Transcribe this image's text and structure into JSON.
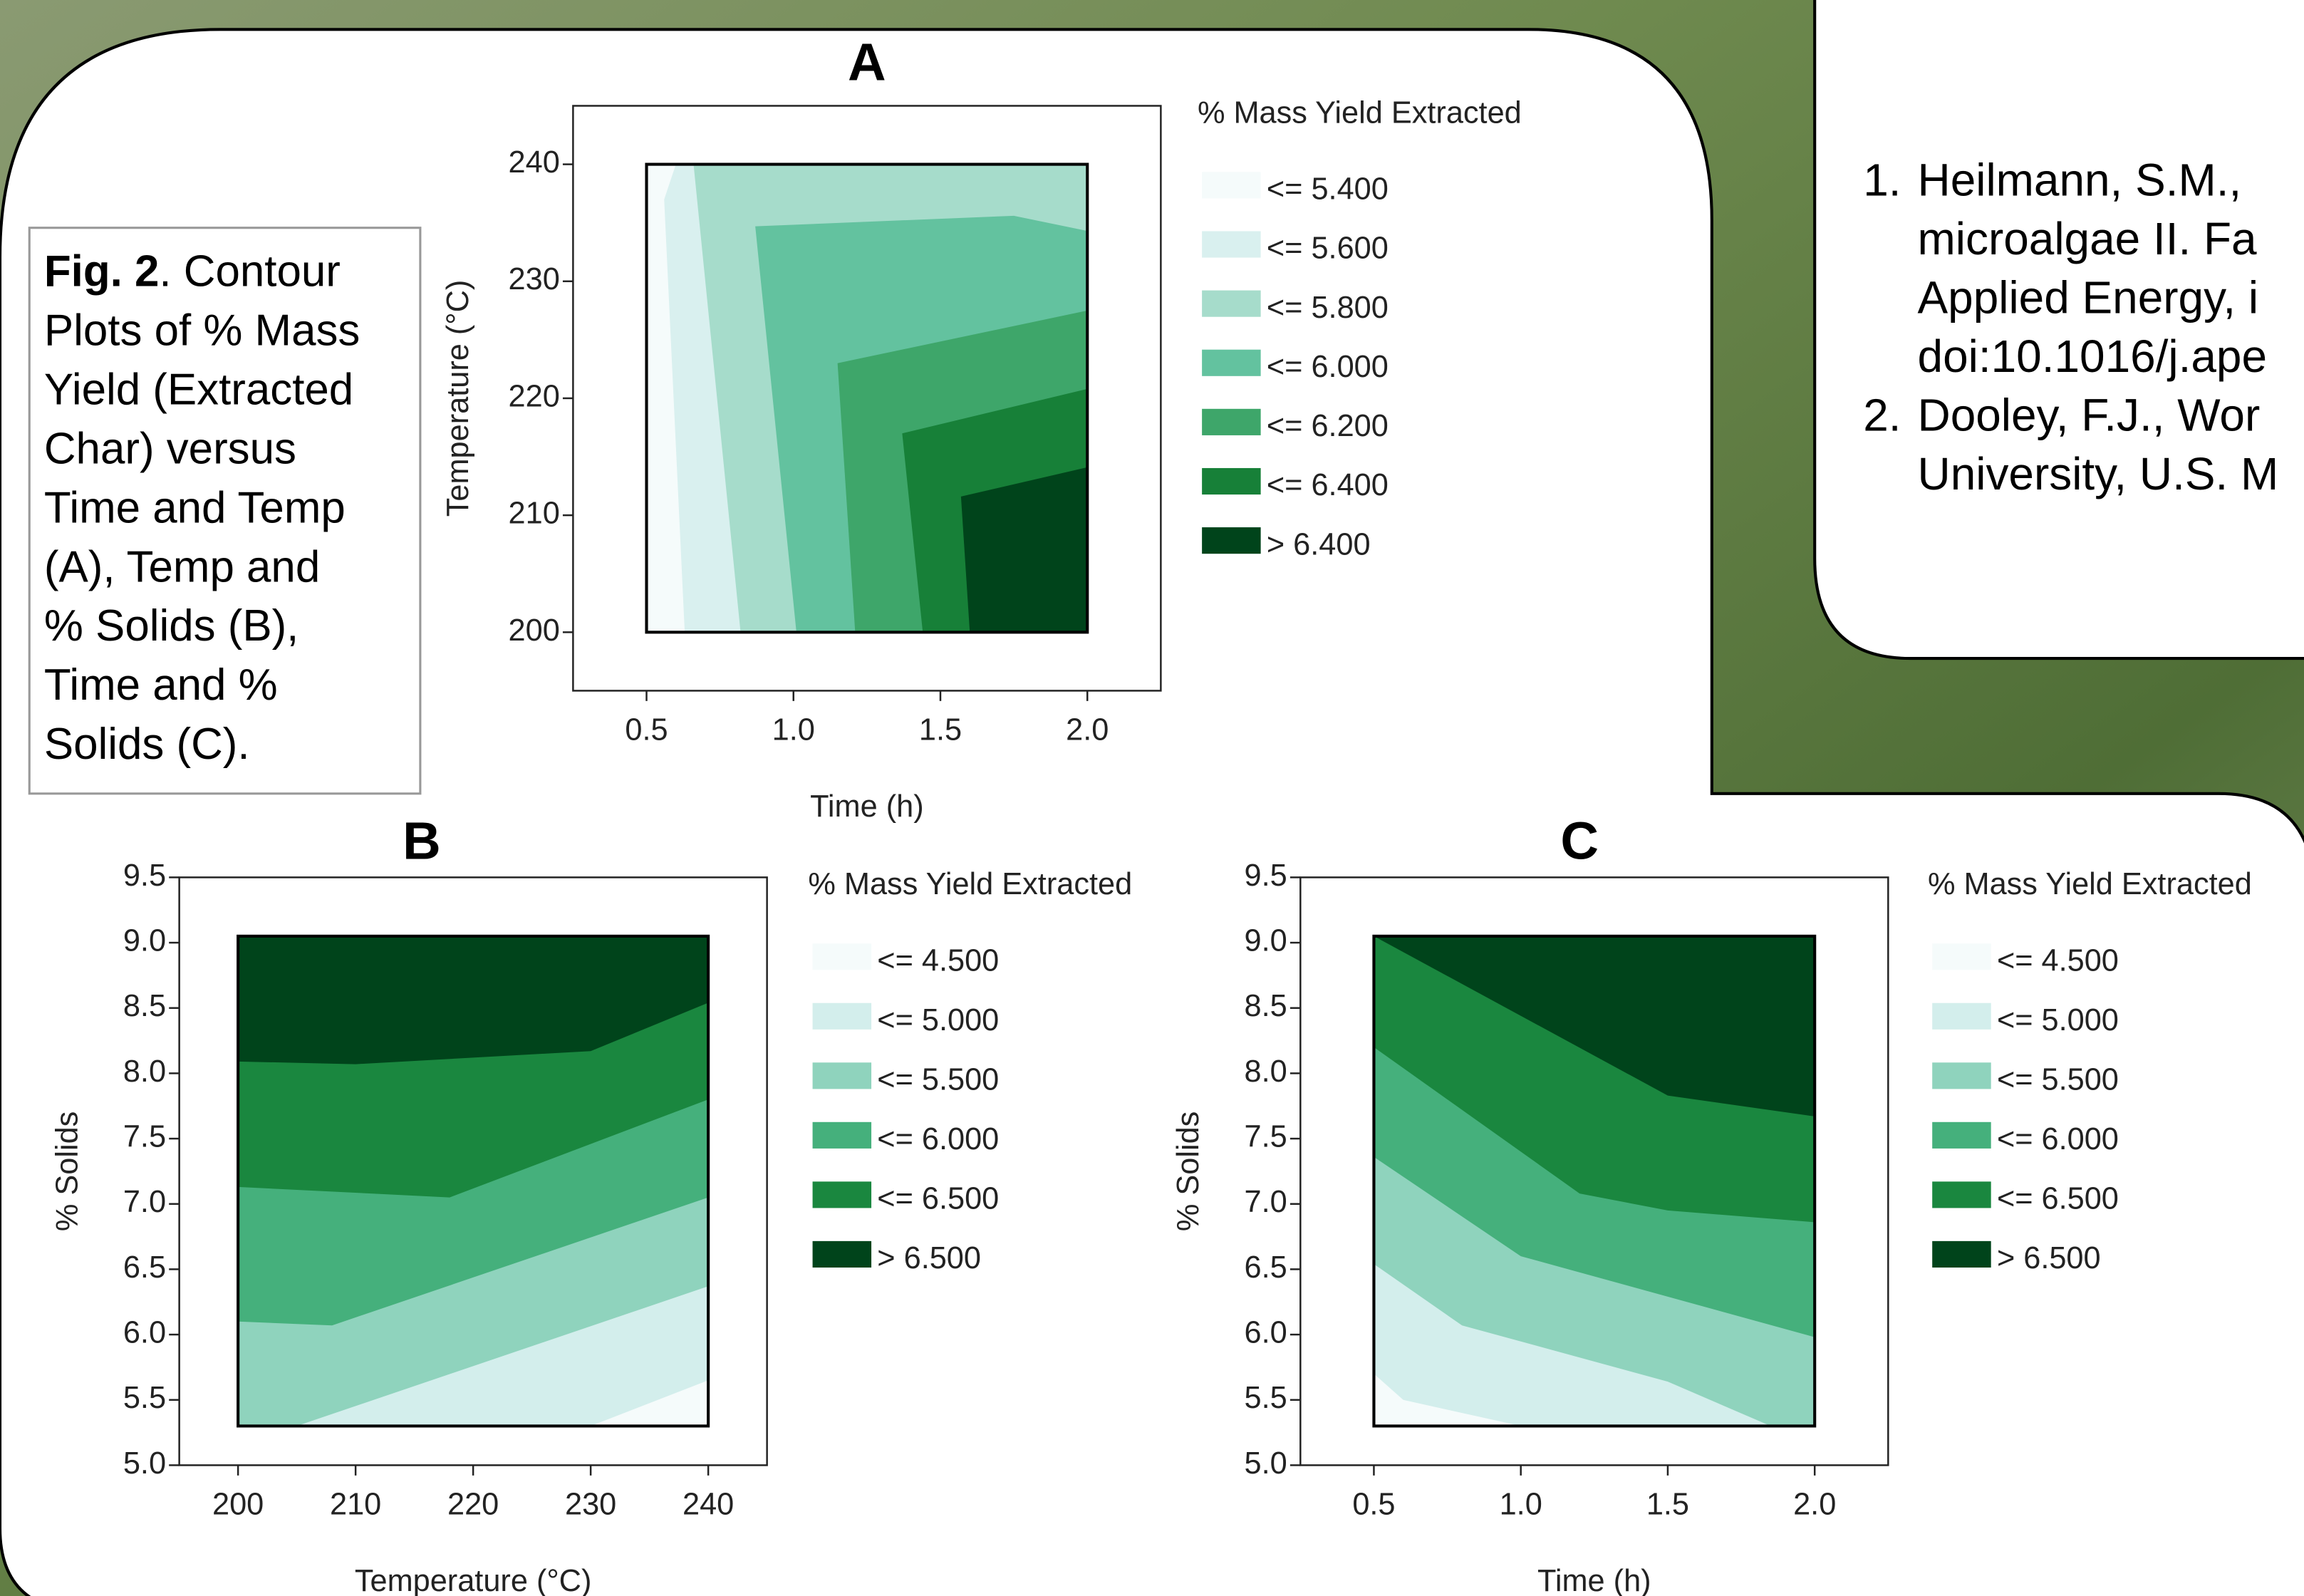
{
  "caption": {
    "label": "Fig. 2",
    "lines": [
      ". Contour",
      "Plots of % Mass",
      "Yield (Extracted",
      "Char) versus",
      "Time and Temp",
      "(A), Temp and",
      "% Solids (B),",
      "Time and %",
      "Solids (C)."
    ]
  },
  "references": [
    {
      "number": "1.",
      "lines": [
        "Heilmann, S.M.,",
        "microalgae II. Fa",
        "Applied Energy, i",
        "doi:10.1016/j.ape"
      ]
    },
    {
      "number": "2.",
      "lines": [
        "Dooley, F.J., Wor",
        "University, U.S. M"
      ]
    }
  ],
  "chart_data": [
    {
      "type": "contour",
      "title": "A",
      "xlabel": "Time (h)",
      "ylabel": "Temperature (°C)",
      "xlim": [
        0.25,
        2.25
      ],
      "ylim": [
        195,
        245
      ],
      "xticks": [
        0.5,
        {
          "value": 1,
          "label": "1.0"
        },
        1.5,
        {
          "value": 2,
          "label": "2.0"
        }
      ],
      "yticks": [
        200,
        210,
        220,
        230,
        240
      ],
      "legend_title": "% Mass Yield Extracted",
      "levels": [
        5.4,
        5.6,
        5.8,
        6.0,
        6.2,
        6.4,
        6.4
      ],
      "level_labels": [
        "<= 5.400",
        "<= 5.600",
        "<= 5.800",
        "<= 6.000",
        "<= 6.200",
        "<= 6.400",
        "> 6.400"
      ],
      "colors": [
        "#f5fbfb",
        "#d9f0ef",
        "#a6dccb",
        "#63c29f",
        "#3ea66a",
        "#178038",
        "#00441b"
      ],
      "regions": [
        [
          [
            0.5,
            240
          ],
          [
            2,
            240
          ],
          [
            2,
            200
          ],
          [
            0.5,
            200
          ]
        ],
        [
          [
            0.6,
            240
          ],
          [
            2,
            240
          ],
          [
            2,
            200
          ],
          [
            0.63,
            200
          ],
          [
            0.56,
            237
          ]
        ],
        [
          [
            0.66,
            240
          ],
          [
            2,
            240
          ],
          [
            2,
            200
          ],
          [
            0.82,
            200
          ]
        ],
        [
          [
            0.87,
            234.7
          ],
          [
            1.75,
            235.6
          ],
          [
            2,
            234.3
          ],
          [
            2,
            200
          ],
          [
            1.01,
            200
          ]
        ],
        [
          [
            1.15,
            223
          ],
          [
            2,
            227.5
          ],
          [
            2,
            200
          ],
          [
            1.21,
            200
          ]
        ],
        [
          [
            1.37,
            217
          ],
          [
            2,
            220.8
          ],
          [
            2,
            200
          ],
          [
            1.44,
            200
          ]
        ],
        [
          [
            1.57,
            211.6
          ],
          [
            2,
            214.1
          ],
          [
            2,
            200
          ],
          [
            1.6,
            200
          ]
        ]
      ]
    },
    {
      "type": "contour",
      "title": "B",
      "xlabel": "Temperature (°C)",
      "ylabel": "% Solids",
      "xlim": [
        195,
        245
      ],
      "ylim": [
        5,
        9.5
      ],
      "xticks": [
        200,
        210,
        220,
        230,
        240
      ],
      "yticks": [
        {
          "value": 5,
          "label": "5.0"
        },
        5.5,
        {
          "value": 6,
          "label": "6.0"
        },
        6.5,
        {
          "value": 7,
          "label": "7.0"
        },
        7.5,
        {
          "value": 8,
          "label": "8.0"
        },
        8.5,
        {
          "value": 9,
          "label": "9.0"
        },
        9.5
      ],
      "legend_title": "% Mass Yield Extracted",
      "levels": [
        4.5,
        5.0,
        5.5,
        6.0,
        6.5,
        6.5
      ],
      "level_labels": [
        "<= 4.500",
        "<= 5.000",
        "<= 5.500",
        "<= 6.000",
        "<= 6.500",
        "> 6.500"
      ],
      "colors": [
        "#f5fbfb",
        "#d3eeec",
        "#8fd3bd",
        "#45b07c",
        "#1a873f",
        "#00441b"
      ],
      "regions": [
        [
          [
            200,
            9.05
          ],
          [
            240,
            9.05
          ],
          [
            240,
            5.3
          ],
          [
            200,
            5.3
          ]
        ],
        [
          [
            200,
            9.05
          ],
          [
            240,
            9.05
          ],
          [
            240,
            5.65
          ],
          [
            230,
            5.3
          ],
          [
            200,
            5.3
          ]
        ],
        [
          [
            200,
            9.05
          ],
          [
            240,
            9.05
          ],
          [
            240,
            6.37
          ],
          [
            205,
            5.3
          ],
          [
            200,
            5.3
          ]
        ],
        [
          [
            200,
            9.05
          ],
          [
            240,
            9.05
          ],
          [
            240,
            7.05
          ],
          [
            208,
            6.07
          ],
          [
            200,
            6.1
          ]
        ],
        [
          [
            200,
            9.05
          ],
          [
            240,
            9.05
          ],
          [
            240,
            7.8
          ],
          [
            218,
            7.05
          ],
          [
            200,
            7.13
          ]
        ],
        [
          [
            200,
            9.05
          ],
          [
            240,
            9.05
          ],
          [
            240,
            8.54
          ],
          [
            230,
            8.17
          ],
          [
            210,
            8.07
          ],
          [
            200,
            8.09
          ]
        ]
      ]
    },
    {
      "type": "contour",
      "title": "C",
      "xlabel": "Time (h)",
      "ylabel": "% Solids",
      "xlim": [
        0.25,
        2.25
      ],
      "ylim": [
        5,
        9.5
      ],
      "xticks": [
        0.5,
        {
          "value": 1,
          "label": "1.0"
        },
        1.5,
        {
          "value": 2,
          "label": "2.0"
        }
      ],
      "yticks": [
        {
          "value": 5,
          "label": "5.0"
        },
        5.5,
        {
          "value": 6,
          "label": "6.0"
        },
        6.5,
        {
          "value": 7,
          "label": "7.0"
        },
        7.5,
        {
          "value": 8,
          "label": "8.0"
        },
        8.5,
        {
          "value": 9,
          "label": "9.0"
        },
        9.5
      ],
      "legend_title": "% Mass Yield Extracted",
      "levels": [
        4.5,
        5.0,
        5.5,
        6.0,
        6.5,
        6.5
      ],
      "level_labels": [
        "<= 4.500",
        "<= 5.000",
        "<= 5.500",
        "<= 6.000",
        "<= 6.500",
        "> 6.500"
      ],
      "colors": [
        "#f5fbfb",
        "#d3eeec",
        "#8fd3bd",
        "#45b07c",
        "#1a873f",
        "#00441b"
      ],
      "regions": [
        [
          [
            0.5,
            9.05
          ],
          [
            2,
            9.05
          ],
          [
            2,
            5.3
          ],
          [
            0.5,
            5.3
          ]
        ],
        [
          [
            0.5,
            5.7
          ],
          [
            0.5,
            9.05
          ],
          [
            2,
            9.05
          ],
          [
            2,
            5.3
          ],
          [
            1.0,
            5.3
          ],
          [
            0.6,
            5.5
          ]
        ],
        [
          [
            0.5,
            6.54
          ],
          [
            0.5,
            9.05
          ],
          [
            2,
            9.05
          ],
          [
            2,
            5.3
          ],
          [
            1.85,
            5.3
          ],
          [
            1.5,
            5.64
          ],
          [
            0.8,
            6.07
          ]
        ],
        [
          [
            0.5,
            7.36
          ],
          [
            0.5,
            9.05
          ],
          [
            2,
            9.05
          ],
          [
            2,
            5.98
          ],
          [
            1.0,
            6.6
          ]
        ],
        [
          [
            0.5,
            8.2
          ],
          [
            0.5,
            9.05
          ],
          [
            2,
            9.05
          ],
          [
            2,
            6.86
          ],
          [
            1.5,
            6.95
          ],
          [
            1.2,
            7.08
          ]
        ],
        [
          [
            0.5,
            9.05
          ],
          [
            2,
            9.05
          ],
          [
            2,
            7.67
          ],
          [
            1.5,
            7.83
          ]
        ]
      ]
    }
  ]
}
